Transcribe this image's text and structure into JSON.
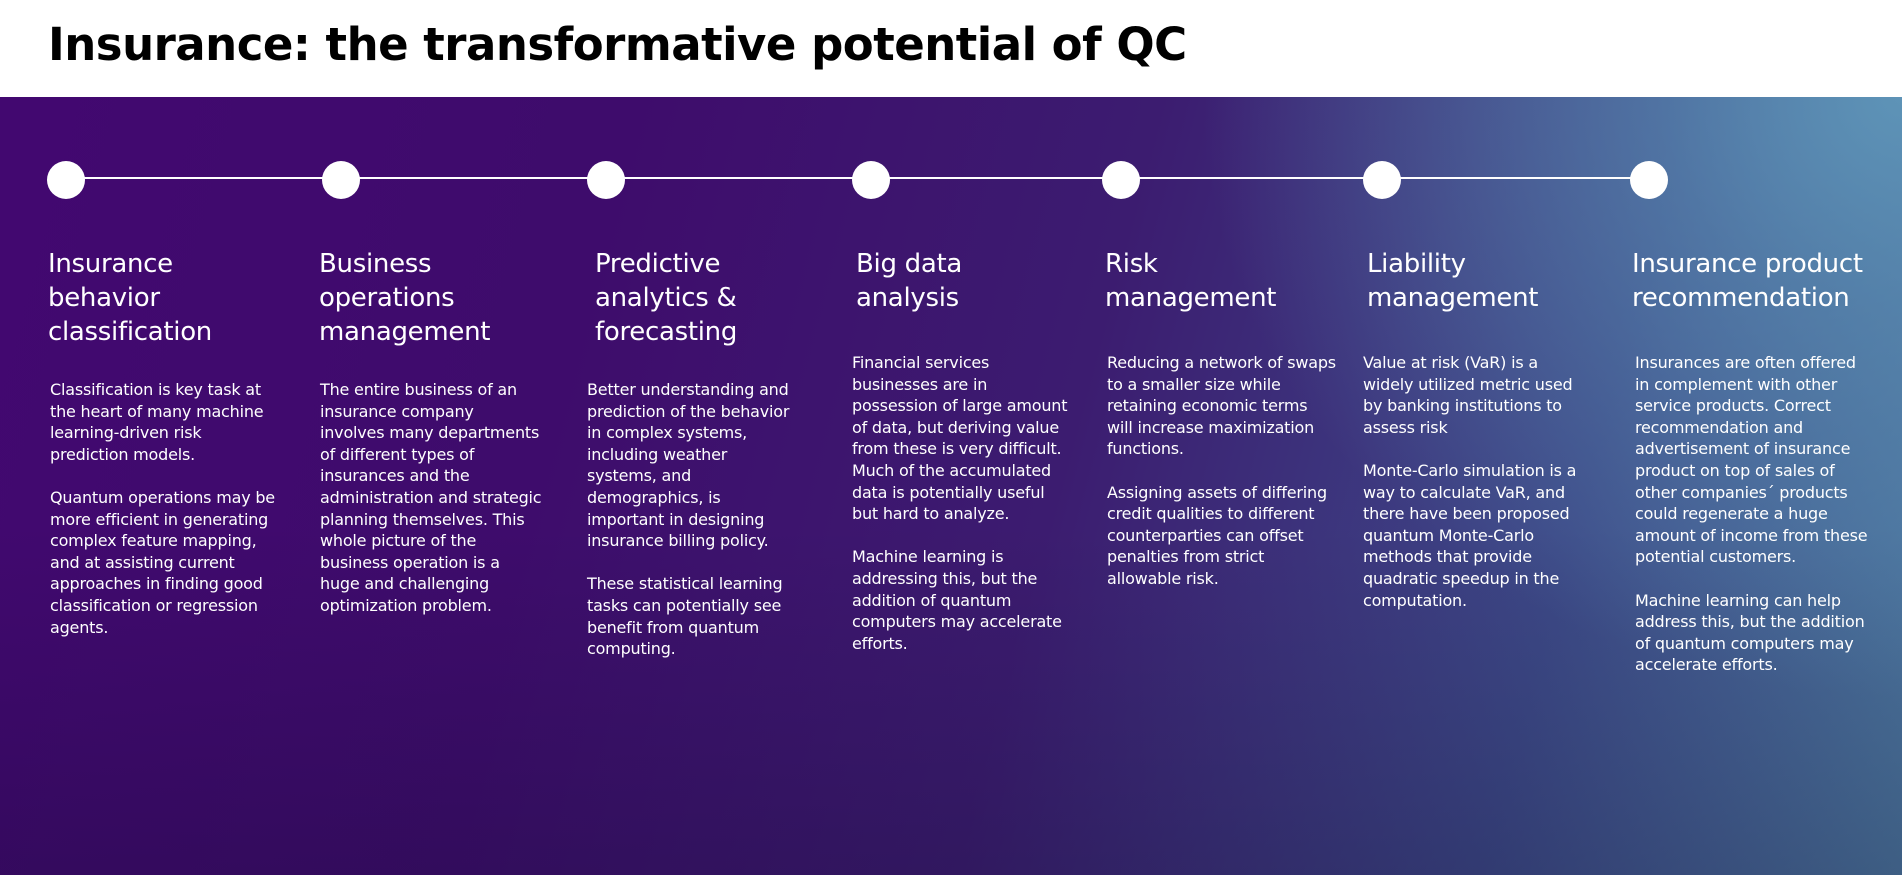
{
  "title": "Insurance: the transformative potential of QC",
  "columns": [
    {
      "title": "Insurance behavior classification",
      "paragraphs": [
        "Classification is key task at the heart of many machine learning-driven risk prediction models.",
        "Quantum operations may be more efficient in generating complex feature mapping, and at assisting current approaches in finding good classification or regression agents."
      ]
    },
    {
      "title": "Business operations management",
      "paragraphs": [
        "The entire business of an insurance company involves many departments of different types of insurances and the administration and strategic planning themselves. This whole picture of the business operation is a huge and challenging optimization problem."
      ]
    },
    {
      "title": "Predictive analytics & forecasting",
      "paragraphs": [
        "Better understanding and prediction of the behavior in complex systems, including weather systems, and demographics, is important in designing insurance billing policy.",
        "These statistical learning tasks can potentially see benefit from quantum computing."
      ]
    },
    {
      "title": "Big data analysis",
      "paragraphs": [
        "Financial services businesses are in possession of large amount of data, but deriving value from these is very difficult. Much of the accumulated data is potentially useful but hard to analyze.",
        "Machine learning is addressing this, but the addition of quantum computers may accelerate efforts."
      ]
    },
    {
      "title": "Risk management",
      "paragraphs": [
        "Reducing a network of swaps to a smaller size while retaining economic terms will increase maximization functions.",
        "Assigning assets of differing credit qualities to different counterparties can offset penalties from strict allowable risk."
      ]
    },
    {
      "title": "Liability management",
      "paragraphs": [
        "Value at risk (VaR) is a widely utilized metric used by banking institutions to assess risk",
        "Monte-Carlo simulation is a way to calculate VaR, and there have been proposed quantum Monte-Carlo methods that provide quadratic speedup in the computation."
      ]
    },
    {
      "title": "Insurance product recommendation",
      "paragraphs": [
        "Insurances are often offered in complement with other service products. Correct recommendation and advertisement of insurance product on top of sales of other companies´ products could regenerate a huge amount of income from these potential customers.",
        "Machine learning can help address this, but the addition of quantum computers may accelerate efforts."
      ]
    }
  ]
}
